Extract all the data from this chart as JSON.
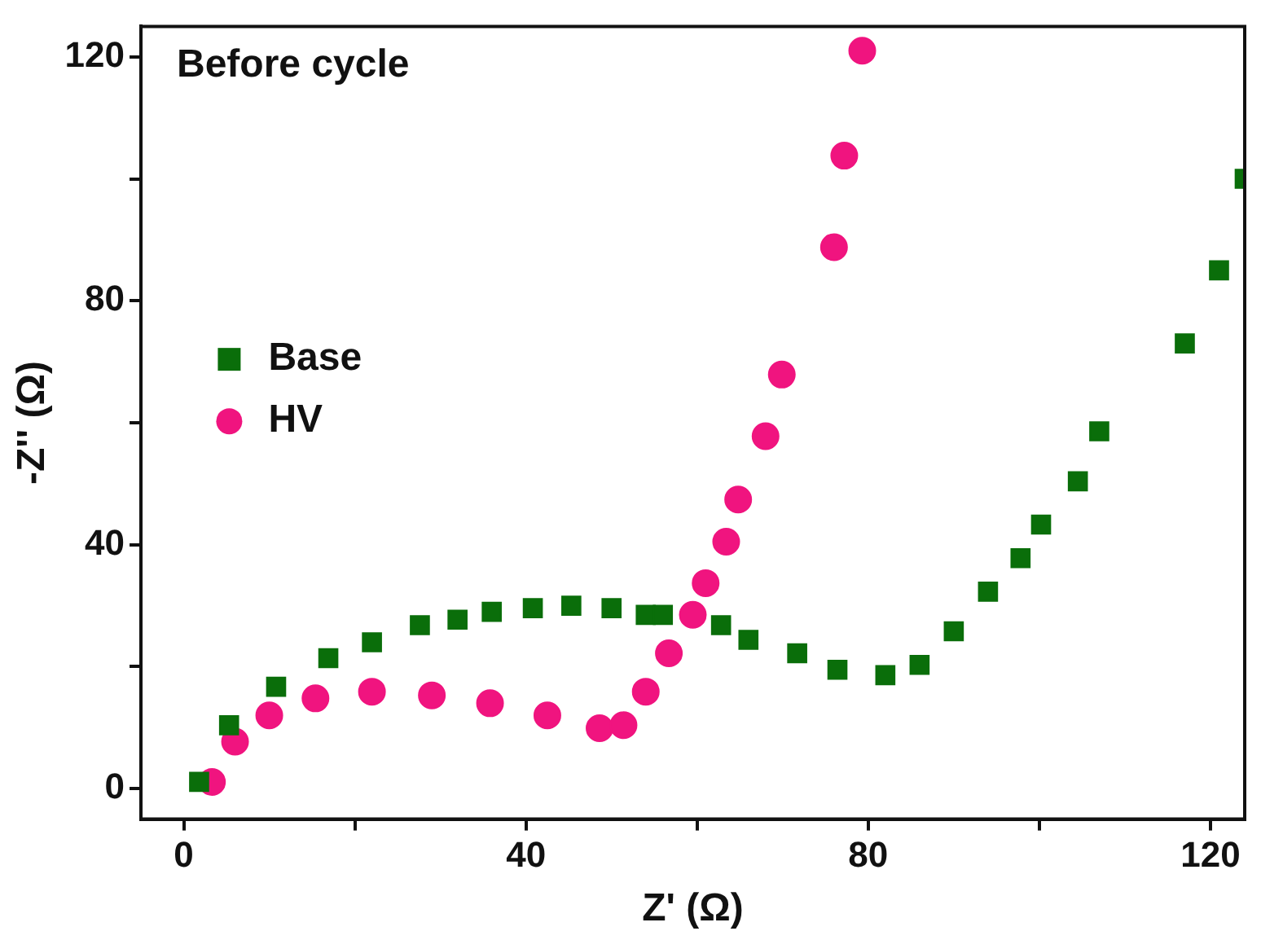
{
  "chart_data": {
    "type": "scatter",
    "xlabel": "Z' (Ω)",
    "ylabel": "-Z'' (Ω)",
    "annotations": [
      "Before cycle"
    ],
    "xlim": [
      -5,
      124
    ],
    "xticks": [
      0,
      {
        "value": 20,
        "label": null
      },
      40,
      {
        "value": 60,
        "label": null
      },
      80,
      {
        "value": 100,
        "label": null
      },
      120
    ],
    "ylim": [
      -5,
      125
    ],
    "yticks": [
      0,
      {
        "value": 20,
        "label": null
      },
      40,
      {
        "value": 60,
        "label": null
      },
      80,
      {
        "value": 100,
        "label": null
      },
      120
    ],
    "grid": false,
    "legend": "left",
    "series": [
      {
        "name": "Base",
        "color": "#0a6e0a",
        "marker": "square",
        "x": [
          1.8,
          5.3,
          10.8,
          16.9,
          22,
          27.6,
          32,
          36,
          40.8,
          45.3,
          50,
          54,
          56,
          62.8,
          66,
          71.7,
          76.4,
          82,
          86,
          90,
          94,
          97.8,
          100.2,
          104.5,
          107,
          117,
          121,
          124
        ],
        "values": [
          1.1,
          10.4,
          16.7,
          21.4,
          24,
          26.8,
          27.7,
          29,
          29.6,
          30,
          29.6,
          28.5,
          28.5,
          26.8,
          24.4,
          22.2,
          19.5,
          18.6,
          20.3,
          25.8,
          32.3,
          37.8,
          43.3,
          50.4,
          58.6,
          73,
          85,
          100
        ]
      },
      {
        "name": "HV",
        "color": "#f0147f",
        "marker": "circle",
        "x": [
          3.3,
          6,
          10,
          15.4,
          22,
          29,
          35.8,
          42.5,
          48.6,
          51.4,
          54,
          56.7,
          59.5,
          61,
          63.4,
          64.8,
          68,
          69.9,
          76,
          77.2,
          79.3
        ],
        "values": [
          1.1,
          7.7,
          12,
          14.8,
          15.9,
          15.3,
          14,
          12,
          9.9,
          10.4,
          15.9,
          22.2,
          28.5,
          33.7,
          40.5,
          47.4,
          57.8,
          67.9,
          88.8,
          103.8,
          121
        ]
      }
    ]
  }
}
